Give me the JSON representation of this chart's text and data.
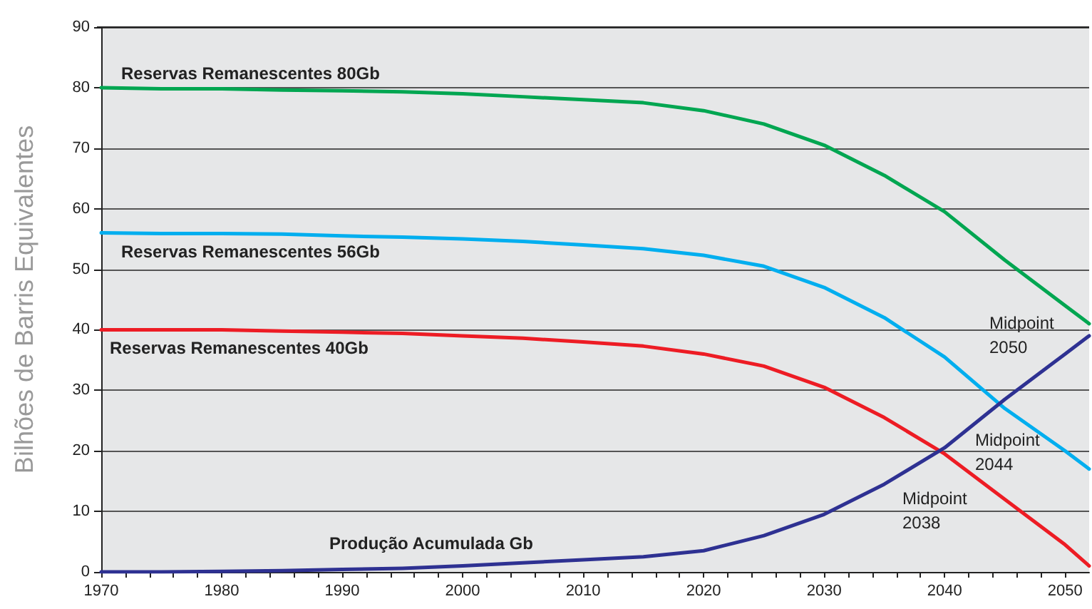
{
  "chart_data": {
    "type": "line",
    "ylabel": "Bilhões de Barris Equivalentes",
    "x": [
      1970,
      1975,
      1980,
      1985,
      1990,
      1995,
      2000,
      2005,
      2010,
      2015,
      2020,
      2025,
      2030,
      2035,
      2040,
      2045,
      2050,
      2052
    ],
    "series": [
      {
        "name": "Reservas Remanescentes 80Gb",
        "color": "#00a651",
        "values": [
          80,
          79.8,
          79.8,
          79.6,
          79.5,
          79.3,
          79,
          78.5,
          78,
          77.5,
          76.2,
          74,
          70.5,
          65.5,
          59.5,
          51.5,
          44,
          41
        ]
      },
      {
        "name": "Reservas Remanescentes 56Gb",
        "color": "#00aeef",
        "values": [
          56,
          55.9,
          55.9,
          55.8,
          55.5,
          55.3,
          55,
          54.6,
          54,
          53.4,
          52.3,
          50.5,
          47,
          42,
          35.5,
          27,
          20,
          17
        ]
      },
      {
        "name": "Reservas Remanescentes 40Gb",
        "color": "#ed1c24",
        "values": [
          40,
          40,
          40,
          39.8,
          39.6,
          39.4,
          39,
          38.6,
          38,
          37.3,
          36,
          34,
          30.5,
          25.5,
          19.5,
          12,
          4.5,
          1
        ]
      },
      {
        "name": "Produção Acumulada Gb",
        "color": "#2e3192",
        "values": [
          0,
          0,
          0.1,
          0.2,
          0.4,
          0.6,
          1,
          1.5,
          2,
          2.5,
          3.5,
          6,
          9.5,
          14.5,
          20.5,
          28.5,
          36,
          39
        ]
      }
    ],
    "annotations": [
      "Midpoint\n2050",
      "Midpoint\n2044",
      "Midpoint\n2038"
    ],
    "xlim": [
      1970,
      2052
    ],
    "xticks": [
      1970,
      1980,
      1990,
      2000,
      2010,
      2020,
      2030,
      2040,
      2050
    ],
    "ylim": [
      0,
      90
    ],
    "yticks": [
      0,
      10,
      20,
      30,
      40,
      50,
      60,
      70,
      80,
      90
    ],
    "grid": "y",
    "marker": "none",
    "line_style": "solid"
  }
}
